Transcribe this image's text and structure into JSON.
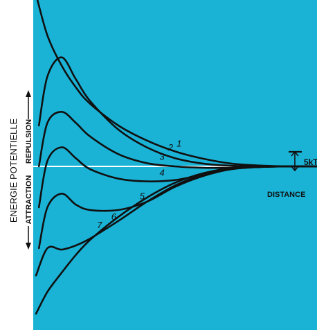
{
  "chart_data": {
    "type": "line",
    "ylabel": "ENERGIE POTENTIELLE",
    "y_top_label": "REPULSION",
    "y_bottom_label": "ATTRACTION",
    "xlabel": "DISTANCE",
    "scale_annotation": "5kT",
    "plot_background": "#1ab3d6",
    "baseline_color": "#ffffff",
    "curve_color": "#101010",
    "xlim": [
      0,
      10
    ],
    "ylim": [
      -6,
      6
    ],
    "series": [
      {
        "name": "1",
        "x": [
          0.1,
          0.5,
          1.0,
          1.5,
          2.0,
          3.0,
          4.0,
          5.0,
          6.0,
          7.0,
          8.0,
          9.0,
          10.0
        ],
        "y": [
          6.3,
          4.8,
          3.7,
          2.9,
          2.3,
          1.5,
          0.95,
          0.55,
          0.28,
          0.1,
          0.03,
          0.0,
          0.0
        ]
      },
      {
        "name": "2",
        "x": [
          0.2,
          0.5,
          1.0,
          1.5,
          2.0,
          3.0,
          4.0,
          5.0,
          6.0,
          7.0,
          8.0,
          9.0,
          10.0
        ],
        "y": [
          1.5,
          3.3,
          4.0,
          3.2,
          2.4,
          1.35,
          0.7,
          0.3,
          0.1,
          0.02,
          0.0,
          0.0,
          0.0
        ]
      },
      {
        "name": "3",
        "x": [
          0.2,
          0.5,
          1.0,
          1.5,
          2.0,
          3.0,
          4.0,
          5.0,
          6.0,
          7.0,
          8.0,
          9.0,
          10.0
        ],
        "y": [
          0.0,
          1.6,
          2.0,
          1.6,
          1.1,
          0.45,
          0.12,
          0.0,
          -0.05,
          -0.05,
          -0.02,
          0.0,
          0.0
        ]
      },
      {
        "name": "4",
        "x": [
          0.2,
          0.5,
          1.0,
          1.5,
          2.0,
          3.0,
          4.0,
          5.0,
          6.0,
          7.0,
          8.0,
          9.0,
          10.0
        ],
        "y": [
          -1.5,
          0.2,
          0.7,
          0.3,
          -0.1,
          -0.45,
          -0.55,
          -0.5,
          -0.3,
          -0.1,
          -0.02,
          0.0,
          0.0
        ]
      },
      {
        "name": "5",
        "x": [
          0.2,
          0.5,
          1.0,
          1.5,
          2.0,
          3.0,
          4.0,
          5.0,
          6.0,
          7.0,
          8.0,
          9.0,
          10.0
        ],
        "y": [
          -3.0,
          -1.5,
          -1.0,
          -1.4,
          -1.6,
          -1.6,
          -1.3,
          -0.75,
          -0.35,
          -0.1,
          -0.02,
          0.0,
          0.0
        ]
      },
      {
        "name": "6",
        "x": [
          0.1,
          0.5,
          1.0,
          1.5,
          2.0,
          3.0,
          4.0,
          5.0,
          6.0,
          7.0,
          8.0,
          9.0,
          10.0
        ],
        "y": [
          -4.0,
          -3.0,
          -3.05,
          -2.9,
          -2.65,
          -2.0,
          -1.3,
          -0.7,
          -0.3,
          -0.08,
          -0.02,
          0.0,
          0.0
        ]
      },
      {
        "name": "7",
        "x": [
          0.1,
          0.5,
          1.0,
          1.5,
          2.0,
          3.0,
          4.0,
          5.0,
          6.0,
          7.0,
          8.0,
          9.0,
          10.0
        ],
        "y": [
          -5.4,
          -4.6,
          -3.9,
          -3.25,
          -2.7,
          -1.85,
          -1.15,
          -0.6,
          -0.25,
          -0.06,
          -0.01,
          0.0,
          0.0
        ]
      }
    ]
  }
}
